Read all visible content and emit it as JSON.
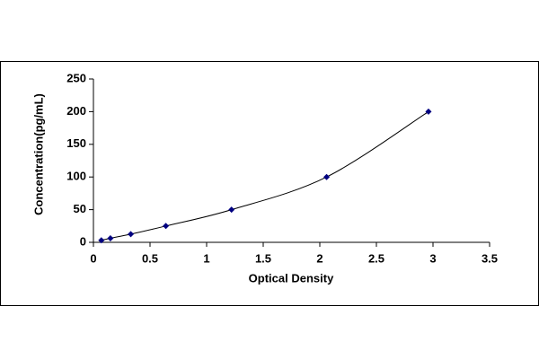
{
  "chart_data": {
    "type": "scatter",
    "x_label": "Optical Density",
    "y_label": "Concentration(pg/mL)",
    "series": [
      {
        "color": "#000080",
        "line_color": "#000000",
        "x": [
          0.07,
          0.15,
          0.33,
          0.64,
          1.22,
          2.06,
          2.96
        ],
        "values": [
          3.13,
          6.25,
          12.5,
          25,
          50,
          100,
          200
        ]
      }
    ],
    "xlim": [
      0,
      3.5
    ],
    "xticks": [
      0,
      0.5,
      1,
      1.5,
      2,
      2.5,
      3,
      3.5
    ],
    "ylim": [
      0,
      250
    ],
    "yticks": [
      0,
      50,
      100,
      150,
      200,
      250
    ],
    "grid": false
  }
}
